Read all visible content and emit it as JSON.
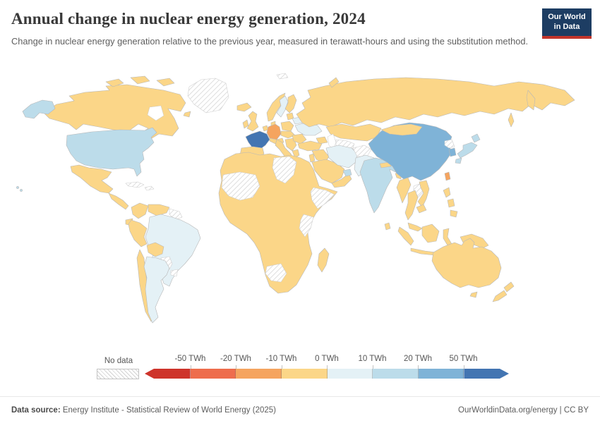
{
  "header": {
    "title": "Annual change in nuclear energy generation, 2024",
    "subtitle": "Change in nuclear energy generation relative to the previous year, measured in terawatt-hours and using the substitution method.",
    "logo": {
      "line1": "Our World",
      "line2": "in Data",
      "bg_color": "#1d3d63",
      "accent_color": "#c2352b"
    }
  },
  "legend": {
    "no_data_label": "No data",
    "tick_labels": [
      "-50 TWh",
      "-20 TWh",
      "-10 TWh",
      "0 TWh",
      "10 TWh",
      "20 TWh",
      "50 TWh"
    ],
    "bin_colors": [
      "#ce342b",
      "#ee6d4d",
      "#f5a45f",
      "#fbd688",
      "#e4f1f6",
      "#bcdcea",
      "#7fb3d7",
      "#4375b2"
    ]
  },
  "footer": {
    "source_label": "Data source:",
    "source_text": " Energy Institute - Statistical Review of World Energy (2025)",
    "link": "OurWorldinData.org/energy",
    "separator": " | ",
    "license": "CC BY"
  },
  "chart_data": {
    "type": "heatmap",
    "subtype": "choropleth-world-map",
    "title": "Annual change in nuclear energy generation, 2024",
    "unit": "TWh",
    "legend_position": "bottom",
    "bins": [
      {
        "range": "below -50",
        "color": "#ce342b"
      },
      {
        "range": "-50 to -20",
        "color": "#ee6d4d"
      },
      {
        "range": "-20 to -10",
        "color": "#f5a45f"
      },
      {
        "range": "-10 to 0",
        "color": "#fbd688"
      },
      {
        "range": "0 to 10",
        "color": "#e4f1f6"
      },
      {
        "range": "10 to 20",
        "color": "#bcdcea"
      },
      {
        "range": "20 to 50",
        "color": "#7fb3d7"
      },
      {
        "range": "above 50",
        "color": "#4375b2"
      },
      {
        "range": "No data",
        "color": "hatched"
      }
    ],
    "band_colors": {
      "below_-50": "#ce342b",
      "-50_to_-20": "#ee6d4d",
      "-20_to_-10": "#f5a45f",
      "-10_to_0": "#fbd688",
      "0_to_10": "#e4f1f6",
      "10_to_20": "#bcdcea",
      "20_to_50": "#7fb3d7",
      "above_50": "#4375b2"
    },
    "entities": [
      {
        "name": "France",
        "band": "above_50"
      },
      {
        "name": "China",
        "band": "20_to_50"
      },
      {
        "name": "South Korea",
        "band": "20_to_50"
      },
      {
        "name": "United States",
        "band": "10_to_20"
      },
      {
        "name": "India",
        "band": "10_to_20"
      },
      {
        "name": "Japan",
        "band": "10_to_20"
      },
      {
        "name": "United Arab Emirates",
        "band": "10_to_20"
      },
      {
        "name": "Brazil",
        "band": "0_to_10"
      },
      {
        "name": "Argentina",
        "band": "0_to_10"
      },
      {
        "name": "Sweden",
        "band": "0_to_10"
      },
      {
        "name": "Belarus",
        "band": "0_to_10"
      },
      {
        "name": "Ukraine",
        "band": "0_to_10"
      },
      {
        "name": "Iran",
        "band": "0_to_10"
      },
      {
        "name": "Pakistan",
        "band": "0_to_10"
      },
      {
        "name": "Germany",
        "band": "-20_to_-10"
      },
      {
        "name": "Taiwan",
        "band": "-20_to_-10"
      },
      {
        "name": "Canada",
        "band": "-10_to_0"
      },
      {
        "name": "Mexico",
        "band": "-10_to_0"
      },
      {
        "name": "Central America",
        "band": "-10_to_0"
      },
      {
        "name": "Colombia",
        "band": "-10_to_0"
      },
      {
        "name": "Venezuela",
        "band": "-10_to_0"
      },
      {
        "name": "Ecuador",
        "band": "-10_to_0"
      },
      {
        "name": "Peru",
        "band": "-10_to_0"
      },
      {
        "name": "Bolivia",
        "band": "-10_to_0"
      },
      {
        "name": "Chile",
        "band": "-10_to_0"
      },
      {
        "name": "Iceland",
        "band": "-10_to_0"
      },
      {
        "name": "United Kingdom",
        "band": "-10_to_0"
      },
      {
        "name": "Ireland",
        "band": "-10_to_0"
      },
      {
        "name": "Norway",
        "band": "-10_to_0"
      },
      {
        "name": "Finland",
        "band": "-10_to_0"
      },
      {
        "name": "Denmark",
        "band": "-10_to_0"
      },
      {
        "name": "Spain",
        "band": "-10_to_0"
      },
      {
        "name": "Italy",
        "band": "-10_to_0"
      },
      {
        "name": "Benelux",
        "band": "-10_to_0"
      },
      {
        "name": "Alpine states",
        "band": "-10_to_0"
      },
      {
        "name": "Poland",
        "band": "-10_to_0"
      },
      {
        "name": "Central Europe",
        "band": "-10_to_0"
      },
      {
        "name": "Balkans",
        "band": "-10_to_0"
      },
      {
        "name": "Greece",
        "band": "-10_to_0"
      },
      {
        "name": "Romania",
        "band": "-10_to_0"
      },
      {
        "name": "Baltics",
        "band": "-10_to_0"
      },
      {
        "name": "Russia",
        "band": "-10_to_0"
      },
      {
        "name": "Kazakhstan",
        "band": "-10_to_0"
      },
      {
        "name": "Caucasus",
        "band": "-10_to_0"
      },
      {
        "name": "Turkey",
        "band": "-10_to_0"
      },
      {
        "name": "Iraq",
        "band": "-10_to_0"
      },
      {
        "name": "Levant",
        "band": "-10_to_0"
      },
      {
        "name": "Saudi Arabia",
        "band": "-10_to_0"
      },
      {
        "name": "Oman",
        "band": "-10_to_0"
      },
      {
        "name": "Nepal",
        "band": "-10_to_0"
      },
      {
        "name": "Bangladesh",
        "band": "-10_to_0"
      },
      {
        "name": "Sri Lanka",
        "band": "-10_to_0"
      },
      {
        "name": "Mongolia",
        "band": "-10_to_0"
      },
      {
        "name": "Myanmar",
        "band": "-10_to_0"
      },
      {
        "name": "Thailand",
        "band": "-10_to_0"
      },
      {
        "name": "Vietnam",
        "band": "-10_to_0"
      },
      {
        "name": "Cambodia",
        "band": "-10_to_0"
      },
      {
        "name": "Malaysia",
        "band": "-10_to_0"
      },
      {
        "name": "Indonesia",
        "band": "-10_to_0"
      },
      {
        "name": "Philippines",
        "band": "-10_to_0"
      },
      {
        "name": "Papua New Guinea",
        "band": "-10_to_0"
      },
      {
        "name": "Africa (most countries)",
        "band": "-10_to_0"
      },
      {
        "name": "Madagascar",
        "band": "-10_to_0"
      },
      {
        "name": "Australia",
        "band": "-10_to_0"
      },
      {
        "name": "New Zealand",
        "band": "-10_to_0"
      },
      {
        "name": "Greenland",
        "band": "no_data"
      },
      {
        "name": "Cuba",
        "band": "no_data"
      },
      {
        "name": "Hispaniola",
        "band": "no_data"
      },
      {
        "name": "Guianas",
        "band": "no_data"
      },
      {
        "name": "Paraguay",
        "band": "no_data"
      },
      {
        "name": "Uruguay",
        "band": "no_data"
      },
      {
        "name": "Turkmenistan",
        "band": "no_data"
      },
      {
        "name": "Afghanistan",
        "band": "no_data"
      },
      {
        "name": "North Korea",
        "band": "no_data"
      },
      {
        "name": "Laos",
        "band": "no_data"
      },
      {
        "name": "Mali-Mauritania",
        "band": "no_data"
      },
      {
        "name": "Libya-Chad",
        "band": "no_data"
      },
      {
        "name": "Ethiopia-Somalia",
        "band": "no_data"
      },
      {
        "name": "Kenya-Tanzania",
        "band": "no_data"
      },
      {
        "name": "Namibia-Botswana",
        "band": "no_data"
      },
      {
        "name": "Svalbard",
        "band": "no_data"
      }
    ]
  }
}
